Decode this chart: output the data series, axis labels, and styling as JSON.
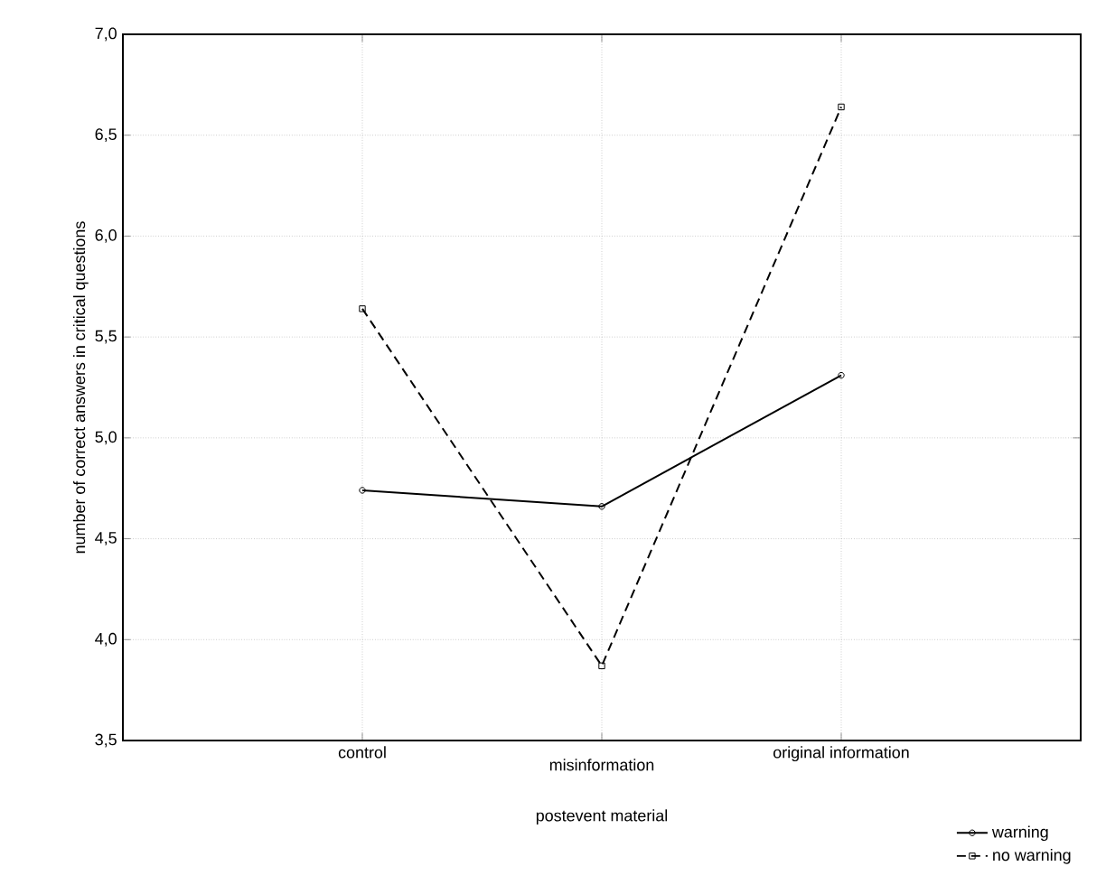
{
  "chart_data": {
    "type": "line",
    "xlabel": "postevent material",
    "ylabel": "number of correct answers in critical questions",
    "categories": [
      "control",
      "misinformation",
      "original information"
    ],
    "series": [
      {
        "name": "warning",
        "color": "#000000",
        "values": [
          4.74,
          4.66,
          5.31
        ],
        "marker": "circle",
        "line_style": "solid"
      },
      {
        "name": "no warning",
        "color": "#000000",
        "values": [
          5.64,
          3.87,
          6.64
        ],
        "marker": "square",
        "line_style": "dashed"
      }
    ],
    "ylim": [
      3.5,
      7.0
    ],
    "yticks": [
      {
        "value": 3.5,
        "label": "3,5"
      },
      {
        "value": 4.0,
        "label": "4,0"
      },
      {
        "value": 4.5,
        "label": "4,5"
      },
      {
        "value": 5.0,
        "label": "5,0"
      },
      {
        "value": 5.5,
        "label": "5,5"
      },
      {
        "value": 6.0,
        "label": "6,0"
      },
      {
        "value": 6.5,
        "label": "6,5"
      },
      {
        "value": 7.0,
        "label": "7,0"
      }
    ],
    "grid": true,
    "legend": "bottom right"
  }
}
